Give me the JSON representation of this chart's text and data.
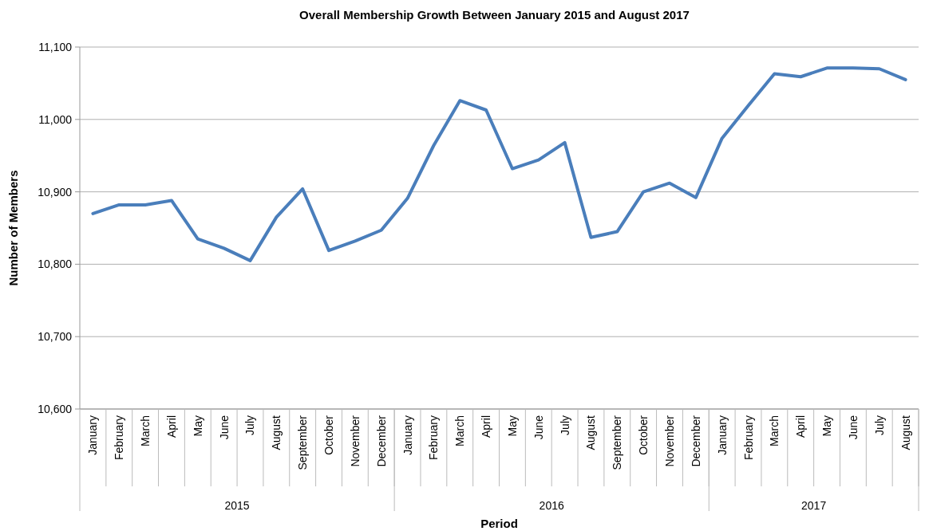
{
  "chart_data": {
    "type": "line",
    "title": "Overall Membership Growth Between January 2015 and August 2017",
    "xlabel": "Period",
    "ylabel": "Number of Members",
    "categories": [
      "January",
      "February",
      "March",
      "April",
      "May",
      "June",
      "July",
      "August",
      "September",
      "October",
      "November",
      "December",
      "January",
      "February",
      "March",
      "April",
      "May",
      "June",
      "July",
      "August",
      "September",
      "October",
      "November",
      "December",
      "January",
      "February",
      "March",
      "April",
      "May",
      "June",
      "July",
      "August"
    ],
    "series": [
      {
        "color": "#4a7ebb",
        "values": [
          10870,
          10882,
          10882,
          10888,
          10835,
          10822,
          10805,
          10865,
          10904,
          10819,
          10832,
          10847,
          10891,
          10964,
          11026,
          11013,
          10932,
          10944,
          10968,
          10837,
          10845,
          10900,
          10912,
          10892,
          10974,
          11019,
          11063,
          11059,
          11071,
          11071,
          11070,
          11055
        ]
      }
    ],
    "ylim": [
      10600,
      11100
    ],
    "yticks": [
      {
        "value": 10600,
        "label": "10,600"
      },
      {
        "value": 10700,
        "label": "10,700"
      },
      {
        "value": 10800,
        "label": "10,800"
      },
      {
        "value": 10900,
        "label": "10,900"
      },
      {
        "value": 11000,
        "label": "11,000"
      },
      {
        "value": 11100,
        "label": "11,100"
      }
    ],
    "grid": "y",
    "marker": "none",
    "line_style": "solid",
    "annotations": [
      "2015",
      "2016",
      "2017"
    ]
  }
}
